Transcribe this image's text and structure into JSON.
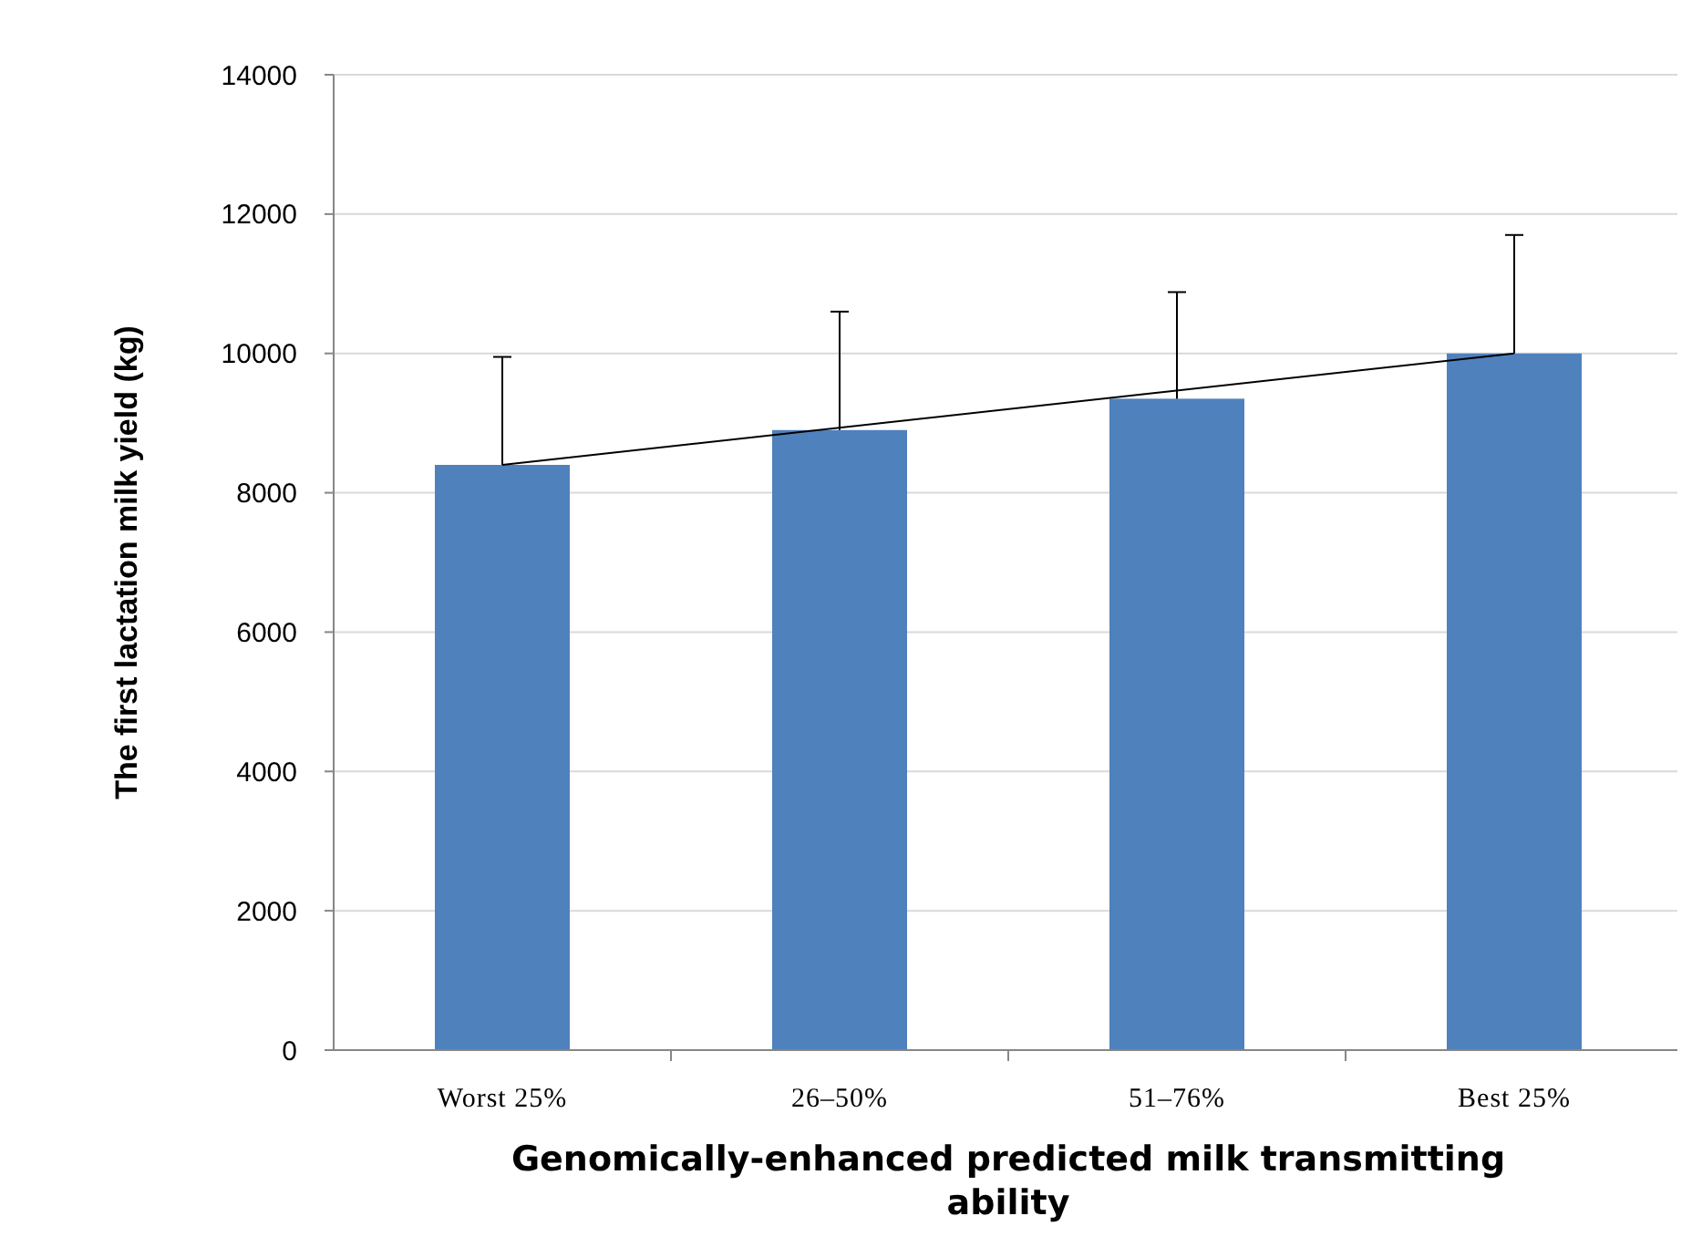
{
  "chart_data": {
    "type": "bar",
    "xlabel": "Genomically-enhanced  predicted milk transmitting ability",
    "ylabel": "The first lactation milk  yield (kg)",
    "categories": [
      "Worst 25%",
      "26–50%",
      "51–76%",
      "Best 25%"
    ],
    "series": [
      {
        "color": "#4f81bd",
        "values": [
          8400,
          8900,
          9350,
          10000
        ],
        "errors": [
          [
            8400,
            9950
          ],
          [
            8900,
            10600
          ],
          [
            9350,
            10880
          ],
          [
            10000,
            11700
          ]
        ]
      },
      {
        "type": "line",
        "color": "#000000",
        "x": [
          "Worst 25%",
          "Best 25%"
        ],
        "values": [
          8400,
          10000
        ]
      }
    ],
    "ylim": [
      0,
      14000
    ],
    "yticks": [
      0,
      2000,
      4000,
      6000,
      8000,
      10000,
      12000,
      14000
    ],
    "grid": "y"
  }
}
